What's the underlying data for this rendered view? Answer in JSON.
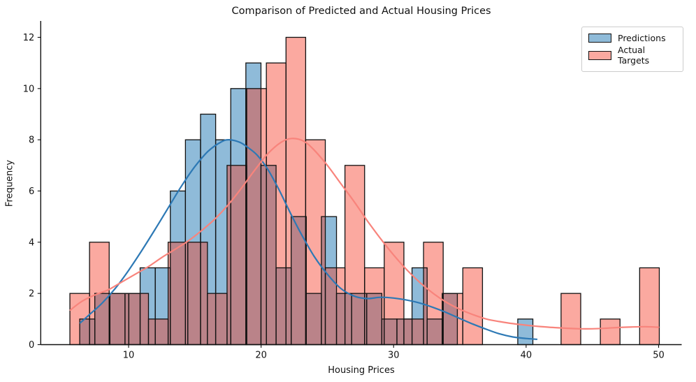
{
  "title": "Comparison of Predicted and Actual Housing Prices",
  "xlabel": "Housing Prices",
  "ylabel": "Frequency",
  "legend": {
    "items": [
      {
        "label": "Predictions",
        "fill": "#8fbbd9"
      },
      {
        "label": "Actual Targets",
        "fill": "#fba9a0"
      }
    ]
  },
  "chart_data": {
    "type": "histogram",
    "title": "Comparison of Predicted and Actual Housing Prices",
    "xlabel": "Housing Prices",
    "ylabel": "Frequency",
    "xlim": [
      3.37,
      51.74
    ],
    "ylim": [
      0,
      12.64
    ],
    "xticks": [
      10,
      20,
      30,
      40,
      50
    ],
    "yticks": [
      0,
      2,
      4,
      6,
      8,
      10,
      12
    ],
    "grid": false,
    "legend_position": "upper right",
    "overlap_fill": "#ba8389",
    "axis_color": "#111111",
    "series": [
      {
        "name": "Predictions",
        "bin_start": 6.31,
        "bin_width": 1.14,
        "counts": [
          1,
          2,
          2,
          2,
          3,
          3,
          6,
          8,
          9,
          8,
          10,
          11,
          7,
          3,
          5,
          2,
          5,
          2,
          2,
          2,
          1,
          1,
          3,
          1,
          2,
          0,
          0,
          0,
          0,
          1
        ],
        "total": 102,
        "fill": "#8fbbd9",
        "line_color": "#2d79b5",
        "kde": [
          [
            6.35,
            0.85
          ],
          [
            7,
            1.15
          ],
          [
            8,
            1.62
          ],
          [
            9,
            2.2
          ],
          [
            10,
            2.9
          ],
          [
            11,
            3.68
          ],
          [
            12,
            4.5
          ],
          [
            13,
            5.35
          ],
          [
            14,
            6.2
          ],
          [
            15,
            6.95
          ],
          [
            16,
            7.55
          ],
          [
            17,
            7.92
          ],
          [
            17.6,
            8.0
          ],
          [
            18.4,
            7.9
          ],
          [
            19,
            7.7
          ],
          [
            19.7,
            7.4
          ],
          [
            20.5,
            6.85
          ],
          [
            21.3,
            6.1
          ],
          [
            22.2,
            5.15
          ],
          [
            23,
            4.35
          ],
          [
            24,
            3.45
          ],
          [
            25,
            2.75
          ],
          [
            26,
            2.2
          ],
          [
            27,
            1.9
          ],
          [
            28,
            1.8
          ],
          [
            29,
            1.85
          ],
          [
            30,
            1.82
          ],
          [
            31,
            1.74
          ],
          [
            32,
            1.62
          ],
          [
            33,
            1.45
          ],
          [
            34,
            1.25
          ],
          [
            35,
            1.02
          ],
          [
            36,
            0.8
          ],
          [
            37,
            0.6
          ],
          [
            38,
            0.42
          ],
          [
            39,
            0.3
          ],
          [
            40,
            0.24
          ],
          [
            40.8,
            0.21
          ]
        ]
      },
      {
        "name": "Actual Targets",
        "bin_start": 5.57,
        "bin_width": 1.4827,
        "counts": [
          2,
          4,
          2,
          2,
          1,
          4,
          4,
          2,
          7,
          10,
          11,
          12,
          8,
          3,
          7,
          3,
          4,
          1,
          4,
          2,
          3,
          0,
          0,
          0,
          0,
          2,
          0,
          1,
          0,
          3
        ],
        "total": 102,
        "fill": "#fba9a0",
        "line_color": "#f8847c",
        "kde": [
          [
            5.6,
            1.35
          ],
          [
            6.5,
            1.7
          ],
          [
            7.5,
            1.95
          ],
          [
            8.5,
            2.15
          ],
          [
            9.5,
            2.45
          ],
          [
            10.5,
            2.75
          ],
          [
            11.5,
            3.05
          ],
          [
            12.5,
            3.4
          ],
          [
            13.5,
            3.72
          ],
          [
            14.5,
            4.05
          ],
          [
            15.5,
            4.45
          ],
          [
            16.5,
            4.9
          ],
          [
            17.5,
            5.45
          ],
          [
            18.5,
            6.1
          ],
          [
            19.5,
            6.8
          ],
          [
            20.5,
            7.45
          ],
          [
            21.5,
            7.9
          ],
          [
            22.3,
            8.05
          ],
          [
            23.2,
            7.95
          ],
          [
            24,
            7.6
          ],
          [
            25,
            7.0
          ],
          [
            26,
            6.3
          ],
          [
            27,
            5.6
          ],
          [
            28,
            4.85
          ],
          [
            29,
            4.15
          ],
          [
            30,
            3.5
          ],
          [
            31,
            2.92
          ],
          [
            32,
            2.42
          ],
          [
            33,
            2.0
          ],
          [
            34,
            1.65
          ],
          [
            35,
            1.38
          ],
          [
            36,
            1.17
          ],
          [
            37,
            1.0
          ],
          [
            38,
            0.9
          ],
          [
            39,
            0.82
          ],
          [
            40,
            0.76
          ],
          [
            41,
            0.71
          ],
          [
            42,
            0.67
          ],
          [
            43,
            0.64
          ],
          [
            44,
            0.62
          ],
          [
            45,
            0.62
          ],
          [
            46,
            0.64
          ],
          [
            47,
            0.67
          ],
          [
            48,
            0.69
          ],
          [
            49,
            0.7
          ],
          [
            50,
            0.68
          ]
        ]
      }
    ]
  }
}
